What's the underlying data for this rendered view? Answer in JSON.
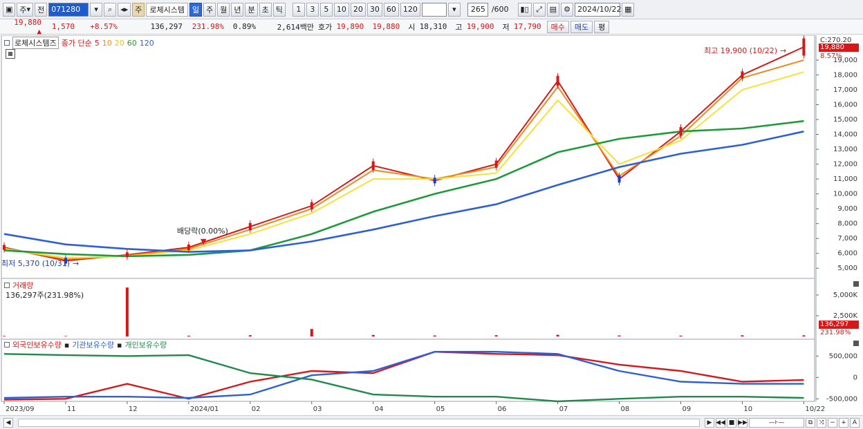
{
  "toolbar": {
    "type_select": "주",
    "prev_label": "전",
    "code": "071280",
    "name": "로체시스템",
    "market_badge": "주",
    "periods": [
      "일",
      "주",
      "월",
      "년",
      "분",
      "초",
      "틱"
    ],
    "active_period": "일",
    "intervals": [
      "1",
      "3",
      "5",
      "10",
      "20",
      "30",
      "60",
      "120"
    ],
    "count": "265",
    "count_total": "/600",
    "date": "2024/10/22"
  },
  "quote": {
    "price": "19,880",
    "arrow": "▲",
    "change": "1,570",
    "change_pct": "+8.57%",
    "volume": "136,297",
    "volume_pct": "231.98%",
    "turnover": "0.89%",
    "amount": "2,614백만",
    "bid_label": "호가",
    "ask": "19,890",
    "bid": "19,880",
    "open_label": "시",
    "open": "18,310",
    "high_label": "고",
    "high": "19,900",
    "low_label": "저",
    "low": "17,790",
    "buy_label": "매수",
    "sell_label": "매도",
    "eval_label": "평"
  },
  "price_panel": {
    "name": "로체시스템즈",
    "legend_prefix": "종가 단순",
    "ma_labels": [
      "5",
      "10",
      "20",
      "60",
      "120"
    ],
    "ma_colors": [
      "#d81818",
      "#f08a1c",
      "#f5e13a",
      "#1e9a3a",
      "#2c5fd8"
    ],
    "high_annotation": "최고 19,900 (10/22)",
    "low_annotation": "최저 5,370 (10/31)",
    "dividend_annotation": "배당락(0.00%)",
    "axis_top": "C:270.20",
    "current_price_tag": "19,880",
    "current_pct_tag": "8.57%",
    "y_ticks": [
      "19,000",
      "18,000",
      "17,000",
      "16,000",
      "15,000",
      "14,000",
      "13,000",
      "12,000",
      "11,000",
      "10,000",
      "9,000",
      "8,000",
      "7,000",
      "6,000",
      "5,000"
    ]
  },
  "volume_panel": {
    "title": "거래량",
    "value": "136,297주(231.98%)",
    "y_ticks": [
      "5,000K",
      "2,500K"
    ],
    "tag_value": "136,297",
    "tag_pct": "231.98%"
  },
  "holding_panel": {
    "series": [
      {
        "name": "외국인보유수량",
        "color": "#d81818"
      },
      {
        "name": "기관보유수량",
        "color": "#2c5fd8"
      },
      {
        "name": "개인보유수량",
        "color": "#1e8a4a"
      }
    ],
    "y_ticks": [
      "500,000",
      "0",
      "-500,000"
    ]
  },
  "x_axis": [
    "2023/09",
    "11",
    "12",
    "2024/01",
    "02",
    "03",
    "04",
    "05",
    "06",
    "07",
    "08",
    "09",
    "10",
    "10/22"
  ],
  "chart_data": [
    {
      "type": "line",
      "title": "",
      "x": [
        "2023/09",
        "11",
        "12",
        "2024/01",
        "02",
        "03",
        "04",
        "05",
        "06",
        "07",
        "08",
        "09",
        "10",
        "10/22"
      ],
      "ylim": [
        4500,
        20300
      ],
      "series": [
        {
          "name": "5",
          "values": [
            6400,
            5500,
            5900,
            6400,
            7800,
            9200,
            11900,
            10900,
            12000,
            17600,
            11000,
            14200,
            18000,
            19880
          ]
        },
        {
          "name": "10",
          "values": [
            6350,
            5600,
            5850,
            6300,
            7600,
            9000,
            11600,
            11000,
            11800,
            17200,
            11200,
            13900,
            17800,
            19000
          ]
        },
        {
          "name": "20",
          "values": [
            6300,
            5700,
            5800,
            6200,
            7300,
            8700,
            11000,
            11000,
            11400,
            16300,
            12000,
            13600,
            17000,
            18200
          ]
        },
        {
          "name": "60",
          "values": [
            6200,
            5950,
            5800,
            5900,
            6200,
            7300,
            8800,
            10000,
            11000,
            12800,
            13700,
            14200,
            14400,
            14900
          ]
        },
        {
          "name": "120",
          "values": [
            7300,
            6600,
            6300,
            6100,
            6200,
            6800,
            7600,
            8500,
            9300,
            10600,
            11800,
            12700,
            13300,
            14200
          ]
        }
      ]
    },
    {
      "type": "bar",
      "title": "",
      "ylim": [
        0,
        6000
      ],
      "categories": [
        "2023/09",
        "11",
        "12",
        "2024/01",
        "02",
        "03",
        "04",
        "05",
        "06",
        "07",
        "08",
        "09",
        "10",
        "10/22"
      ],
      "values": [
        60,
        50,
        5900,
        90,
        150,
        900,
        180,
        120,
        150,
        200,
        120,
        100,
        140,
        136
      ]
    },
    {
      "type": "line",
      "title": "",
      "ylim": [
        -560000,
        700000
      ],
      "x": [
        "2023/09",
        "11",
        "12",
        "2024/01",
        "02",
        "03",
        "04",
        "05",
        "06",
        "07",
        "08",
        "09",
        "10",
        "10/22"
      ],
      "series": [
        {
          "name": "외국인보유수량",
          "values": [
            -520000,
            -500000,
            -150000,
            -500000,
            -100000,
            150000,
            100000,
            600000,
            550000,
            520000,
            300000,
            150000,
            -100000,
            -60000
          ]
        },
        {
          "name": "기관보유수량",
          "values": [
            -480000,
            -450000,
            -450000,
            -480000,
            -400000,
            50000,
            150000,
            600000,
            600000,
            550000,
            150000,
            -100000,
            -150000,
            -150000
          ]
        },
        {
          "name": "개인보유수량",
          "values": [
            550000,
            520000,
            500000,
            520000,
            100000,
            -50000,
            -400000,
            -450000,
            -450000,
            -560000,
            -500000,
            -450000,
            -450000,
            -480000
          ]
        }
      ]
    }
  ]
}
